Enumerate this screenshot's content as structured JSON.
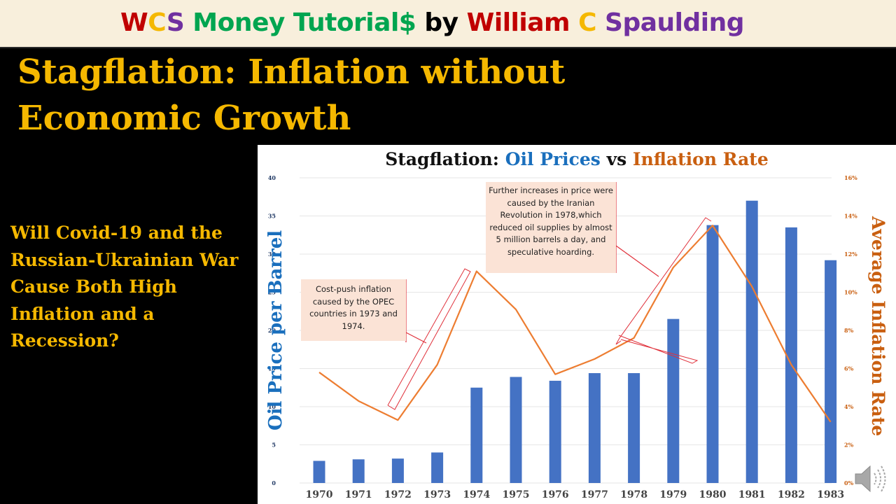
{
  "banner": {
    "parts": [
      {
        "text": "W",
        "color": "#c00000"
      },
      {
        "text": "C",
        "color": "#f5b800"
      },
      {
        "text": "S ",
        "color": "#7030a0"
      },
      {
        "text": "Money Tutorial$ ",
        "color": "#00a550"
      },
      {
        "text": "by ",
        "color": "#000000"
      },
      {
        "text": "William ",
        "color": "#c00000"
      },
      {
        "text": "C ",
        "color": "#f5b800"
      },
      {
        "text": "Spaulding",
        "color": "#7030a0"
      }
    ]
  },
  "slide": {
    "title": "Stagflation: Inflation without Economic Growth",
    "question": "Will Covid-19 and the Russian-Ukrainian War Cause Both High Inflation and a Recession?"
  },
  "chart_title": {
    "part1": "Stagflation: ",
    "part2": "Oil Prices",
    "part3": " vs ",
    "part4": "Inflation Rate"
  },
  "annotations": {
    "opec": "Cost-push inflation caused by the OPEC countries in 1973 and 1974.",
    "iran": "Further increases in price were caused by the Iranian Revolution in 1978,which reduced oil supplies by almost 5 million barrels a day, and speculative hoarding."
  },
  "colors": {
    "bar": "#4472c4",
    "line": "#ed7d31",
    "bracket": "#e0303a",
    "left_axis": "#1a6fbd",
    "right_axis": "#c95f10",
    "title_yellow": "#f5b800"
  },
  "media": {
    "icon": "speaker-icon"
  },
  "chart_data": {
    "type": "bar",
    "title": "Stagflation: Oil Prices vs Inflation Rate",
    "categories": [
      "1970",
      "1971",
      "1972",
      "1973",
      "1974",
      "1975",
      "1976",
      "1977",
      "1978",
      "1979",
      "1980",
      "1981",
      "1982",
      "1983"
    ],
    "series": [
      {
        "name": "Oil Price per Barrel",
        "type": "bar",
        "axis": "left",
        "values": [
          2.9,
          3.1,
          3.2,
          4.0,
          12.5,
          13.9,
          13.4,
          14.4,
          14.4,
          21.5,
          33.8,
          37.0,
          33.5,
          29.2
        ]
      },
      {
        "name": "Average Inflation Rate",
        "type": "line",
        "axis": "right",
        "unit": "%",
        "values": [
          5.8,
          4.3,
          3.3,
          6.2,
          11.1,
          9.1,
          5.7,
          6.5,
          7.6,
          11.3,
          13.5,
          10.3,
          6.2,
          3.2
        ]
      }
    ],
    "ylabel": "Oil Price per Barrel",
    "ylabel_right": "Average Inflation Rate",
    "ylim": [
      0,
      40
    ],
    "yticks": [
      "0",
      "5",
      "10",
      "15",
      "20",
      "25",
      "30",
      "35",
      "40"
    ],
    "ylim_right": [
      0,
      16
    ],
    "yticks_right": [
      "0%",
      "2%",
      "4%",
      "6%",
      "8%",
      "10%",
      "12%",
      "14%",
      "16%"
    ],
    "grid": true,
    "legend": "none"
  }
}
